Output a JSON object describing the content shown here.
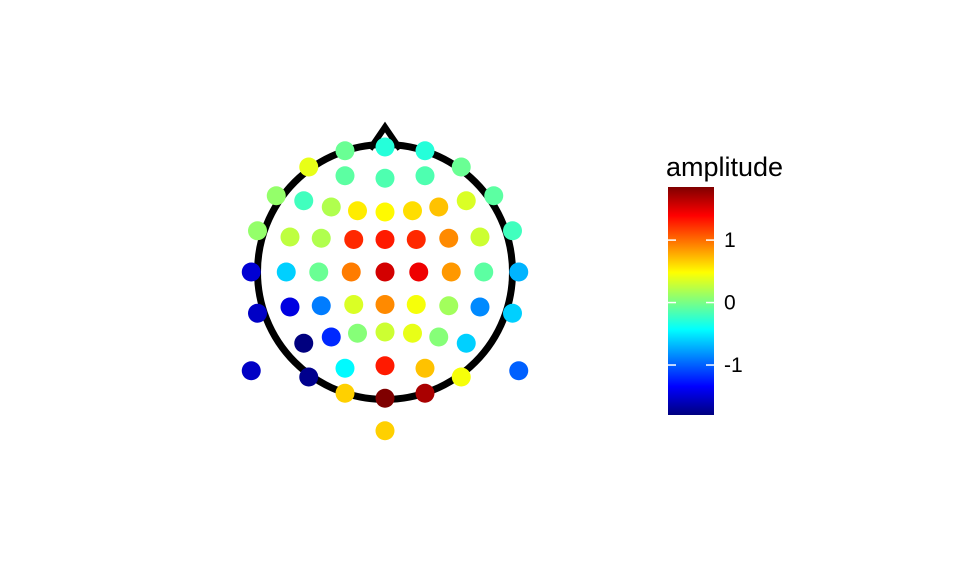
{
  "chart_data": {
    "type": "scatter",
    "title": "",
    "xlabel": "",
    "ylabel": "",
    "grid": false,
    "head_outline": true,
    "head_radius": 0.51,
    "nose": [
      [
        -0.06,
        0.492
      ],
      [
        0.0,
        0.58
      ],
      [
        0.06,
        0.492
      ]
    ],
    "xlim": [
      -0.88,
      1.08
    ],
    "ylim": [
      -0.99,
      0.63
    ],
    "colorbar": {
      "title": "amplitude",
      "min": -1.8,
      "max": 1.85,
      "ticks": [
        1,
        0,
        -1
      ],
      "tick_labels": [
        "1",
        "0",
        "-1"
      ],
      "colormap": [
        "#00007F",
        "#0000FF",
        "#007FFF",
        "#00FFFF",
        "#7FFF7F",
        "#FFFF00",
        "#FF7F00",
        "#FF0000",
        "#7F0000"
      ],
      "position": "right"
    },
    "points": [
      {
        "x": 0.0,
        "y": 0.5,
        "amplitude": -0.3
      },
      {
        "x": -0.16,
        "y": 0.485,
        "amplitude": -0.05
      },
      {
        "x": 0.16,
        "y": 0.485,
        "amplitude": -0.3
      },
      {
        "x": -0.305,
        "y": 0.42,
        "amplitude": 0.4
      },
      {
        "x": 0.305,
        "y": 0.42,
        "amplitude": -0.05
      },
      {
        "x": -0.435,
        "y": 0.305,
        "amplitude": 0.1
      },
      {
        "x": 0.435,
        "y": 0.305,
        "amplitude": -0.1
      },
      {
        "x": -0.51,
        "y": 0.165,
        "amplitude": 0.1
      },
      {
        "x": 0.51,
        "y": 0.165,
        "amplitude": -0.2
      },
      {
        "x": -0.535,
        "y": 0.0,
        "amplitude": -1.5
      },
      {
        "x": 0.535,
        "y": 0.0,
        "amplitude": -0.7
      },
      {
        "x": -0.51,
        "y": -0.165,
        "amplitude": -1.55
      },
      {
        "x": 0.51,
        "y": -0.165,
        "amplitude": -0.6
      },
      {
        "x": -0.535,
        "y": -0.395,
        "amplitude": -1.55
      },
      {
        "x": 0.535,
        "y": -0.395,
        "amplitude": -1.0
      },
      {
        "x": 0.0,
        "y": -0.635,
        "amplitude": 0.65
      },
      {
        "x": -0.16,
        "y": 0.385,
        "amplitude": -0.1
      },
      {
        "x": 0.0,
        "y": 0.375,
        "amplitude": -0.15
      },
      {
        "x": 0.16,
        "y": 0.385,
        "amplitude": -0.15
      },
      {
        "x": -0.325,
        "y": 0.285,
        "amplitude": -0.2
      },
      {
        "x": -0.215,
        "y": 0.26,
        "amplitude": 0.2
      },
      {
        "x": -0.11,
        "y": 0.245,
        "amplitude": 0.55
      },
      {
        "x": 0.0,
        "y": 0.24,
        "amplitude": 0.5
      },
      {
        "x": 0.11,
        "y": 0.245,
        "amplitude": 0.6
      },
      {
        "x": 0.215,
        "y": 0.26,
        "amplitude": 0.7
      },
      {
        "x": 0.325,
        "y": 0.285,
        "amplitude": 0.35
      },
      {
        "x": -0.38,
        "y": 0.14,
        "amplitude": 0.25
      },
      {
        "x": -0.255,
        "y": 0.135,
        "amplitude": 0.2
      },
      {
        "x": -0.125,
        "y": 0.13,
        "amplitude": 1.25
      },
      {
        "x": 0.0,
        "y": 0.13,
        "amplitude": 1.3
      },
      {
        "x": 0.125,
        "y": 0.13,
        "amplitude": 1.25
      },
      {
        "x": 0.255,
        "y": 0.135,
        "amplitude": 0.9
      },
      {
        "x": 0.38,
        "y": 0.14,
        "amplitude": 0.3
      },
      {
        "x": -0.395,
        "y": 0.0,
        "amplitude": -0.6
      },
      {
        "x": -0.265,
        "y": 0.0,
        "amplitude": -0.05
      },
      {
        "x": -0.135,
        "y": 0.0,
        "amplitude": 0.95
      },
      {
        "x": 0.0,
        "y": 0.0,
        "amplitude": 1.55
      },
      {
        "x": 0.135,
        "y": 0.0,
        "amplitude": 1.45
      },
      {
        "x": 0.265,
        "y": 0.0,
        "amplitude": 0.85
      },
      {
        "x": 0.395,
        "y": 0.0,
        "amplitude": -0.1
      },
      {
        "x": -0.38,
        "y": -0.14,
        "amplitude": -1.45
      },
      {
        "x": -0.255,
        "y": -0.135,
        "amplitude": -0.9
      },
      {
        "x": -0.125,
        "y": -0.13,
        "amplitude": 0.35
      },
      {
        "x": 0.0,
        "y": -0.13,
        "amplitude": 0.9
      },
      {
        "x": 0.125,
        "y": -0.13,
        "amplitude": 0.45
      },
      {
        "x": 0.255,
        "y": -0.135,
        "amplitude": 0.15
      },
      {
        "x": 0.38,
        "y": -0.14,
        "amplitude": -0.85
      },
      {
        "x": -0.325,
        "y": -0.285,
        "amplitude": -1.8
      },
      {
        "x": -0.215,
        "y": -0.26,
        "amplitude": -1.2
      },
      {
        "x": -0.11,
        "y": -0.245,
        "amplitude": 0.05
      },
      {
        "x": 0.0,
        "y": -0.24,
        "amplitude": 0.3
      },
      {
        "x": 0.11,
        "y": -0.245,
        "amplitude": 0.4
      },
      {
        "x": 0.215,
        "y": -0.26,
        "amplitude": 0.05
      },
      {
        "x": 0.325,
        "y": -0.285,
        "amplitude": -0.6
      },
      {
        "x": -0.16,
        "y": -0.385,
        "amplitude": -0.45
      },
      {
        "x": 0.0,
        "y": -0.375,
        "amplitude": 1.3
      },
      {
        "x": 0.16,
        "y": -0.385,
        "amplitude": 0.7
      },
      {
        "x": -0.305,
        "y": -0.42,
        "amplitude": -1.75
      },
      {
        "x": 0.305,
        "y": -0.42,
        "amplitude": 0.45
      },
      {
        "x": -0.16,
        "y": -0.485,
        "amplitude": 0.65
      },
      {
        "x": 0.0,
        "y": -0.505,
        "amplitude": 1.85
      },
      {
        "x": 0.16,
        "y": -0.485,
        "amplitude": 1.7
      }
    ]
  }
}
